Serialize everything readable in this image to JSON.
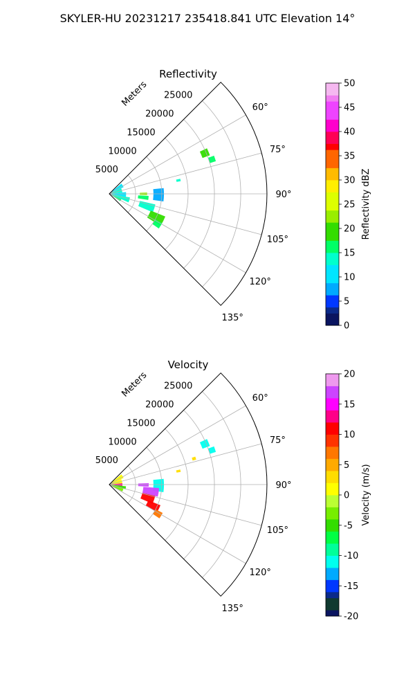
{
  "figure": {
    "title": "SKYLER-HU  20231217  235418.841 UTC Elevation 14°"
  },
  "chart_data": [
    {
      "type": "polar-sector",
      "title": "Reflectivity",
      "radial_label": "Meters",
      "radial_ticks": [
        "5000",
        "10000",
        "15000",
        "20000",
        "25000"
      ],
      "radial_range": [
        0,
        30000
      ],
      "angle_range_deg": [
        45,
        135
      ],
      "angle_ticks": [
        "60°",
        "75°",
        "90°",
        "105°",
        "120°",
        "135°"
      ],
      "grid": true,
      "colorbar": {
        "label": "Reflectivity dBZ",
        "range": [
          0,
          50
        ],
        "ticks": [
          "0",
          "5",
          "10",
          "15",
          "20",
          "25",
          "30",
          "35",
          "40",
          "45",
          "50"
        ]
      },
      "echoes": [
        {
          "az": [
            50,
            65
          ],
          "range_m": [
            300,
            3000
          ],
          "value": 10
        },
        {
          "az": [
            65,
            84
          ],
          "range_m": [
            300,
            2500
          ],
          "value": 12
        },
        {
          "az": [
            84,
            100
          ],
          "range_m": [
            300,
            3200
          ],
          "value": 11
        },
        {
          "az": [
            100,
            114
          ],
          "range_m": [
            300,
            4000
          ],
          "value": 13
        },
        {
          "az": [
            114,
            124
          ],
          "range_m": [
            300,
            2500
          ],
          "value": 15
        },
        {
          "az": [
            84,
            98
          ],
          "range_m": [
            8400,
            10400
          ],
          "value": 7
        },
        {
          "az": [
            88,
            92
          ],
          "range_m": [
            5800,
            7200
          ],
          "value": 22
        },
        {
          "az": [
            93,
            99
          ],
          "range_m": [
            5500,
            7500
          ],
          "value": 16
        },
        {
          "az": [
            103,
            113
          ],
          "range_m": [
            6000,
            9000
          ],
          "value": 14
        },
        {
          "az": [
            112,
            122
          ],
          "range_m": [
            8500,
            11500
          ],
          "value": 19
        },
        {
          "az": [
            119,
            125
          ],
          "range_m": [
            10000,
            11500
          ],
          "value": 17
        },
        {
          "az": [
            65,
            69
          ],
          "range_m": [
            19000,
            20500
          ],
          "value": 18
        },
        {
          "az": [
            70,
            73
          ],
          "range_m": [
            20000,
            21200
          ],
          "value": 17
        },
        {
          "az": [
            78,
            80
          ],
          "range_m": [
            13000,
            13800
          ],
          "value": 12
        }
      ]
    },
    {
      "type": "polar-sector",
      "title": "Velocity",
      "radial_label": "Meters",
      "radial_ticks": [
        "5000",
        "10000",
        "15000",
        "20000",
        "25000"
      ],
      "radial_range": [
        0,
        30000
      ],
      "angle_range_deg": [
        45,
        135
      ],
      "angle_ticks": [
        "60°",
        "75°",
        "90°",
        "105°",
        "120°",
        "135°"
      ],
      "grid": true,
      "colorbar": {
        "label": "Velocity (m/s)",
        "range": [
          -20,
          20
        ],
        "ticks": [
          "-20",
          "-15",
          "-10",
          "-5",
          "0",
          "5",
          "10",
          "15",
          "20"
        ]
      },
      "echoes": [
        {
          "az": [
            50,
            65
          ],
          "range_m": [
            300,
            3000
          ],
          "value": 0
        },
        {
          "az": [
            65,
            84
          ],
          "range_m": [
            300,
            2500
          ],
          "value": 1
        },
        {
          "az": [
            84,
            96
          ],
          "range_m": [
            300,
            2500
          ],
          "value": 12
        },
        {
          "az": [
            96,
            106
          ],
          "range_m": [
            300,
            3200
          ],
          "value": -6
        },
        {
          "az": [
            106,
            118
          ],
          "range_m": [
            300,
            2800
          ],
          "value": -3
        },
        {
          "az": [
            84,
            98
          ],
          "range_m": [
            8400,
            10400
          ],
          "value": -12
        },
        {
          "az": [
            88,
            93
          ],
          "range_m": [
            5500,
            7500
          ],
          "value": 16
        },
        {
          "az": [
            94,
            104
          ],
          "range_m": [
            6500,
            9500
          ],
          "value": 17
        },
        {
          "az": [
            104,
            114
          ],
          "range_m": [
            6500,
            9000
          ],
          "value": 11
        },
        {
          "az": [
            112,
            120
          ],
          "range_m": [
            8000,
            10500
          ],
          "value": 10
        },
        {
          "az": [
            118,
            124
          ],
          "range_m": [
            10000,
            11500
          ],
          "value": 6
        },
        {
          "az": [
            65,
            69
          ],
          "range_m": [
            19000,
            20500
          ],
          "value": -12
        },
        {
          "az": [
            70,
            73
          ],
          "range_m": [
            20000,
            21200
          ],
          "value": -12
        },
        {
          "az": [
            78,
            80
          ],
          "range_m": [
            13000,
            13800
          ],
          "value": 2
        },
        {
          "az": [
            72,
            74
          ],
          "range_m": [
            16500,
            17200
          ],
          "value": 3
        }
      ]
    }
  ]
}
